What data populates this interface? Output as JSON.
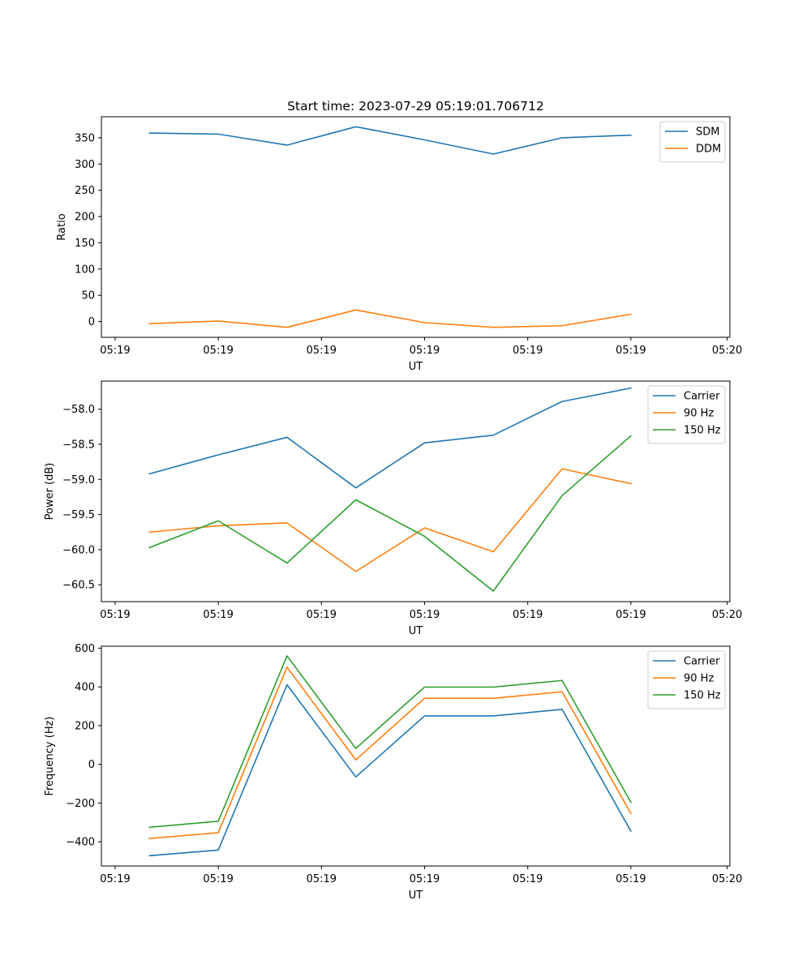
{
  "chart_data": [
    {
      "type": "line",
      "title": "Start time: 2023-07-29 05:19:01.706712",
      "xlabel": "UT",
      "ylabel": "Ratio",
      "x": [
        1,
        2,
        3,
        4,
        5,
        6,
        7,
        8
      ],
      "xlim": [
        0.3,
        9.44
      ],
      "x_ticks": [
        0.5,
        2,
        3.5,
        5,
        6.5,
        8,
        9.4
      ],
      "x_tick_labels": [
        "05:19",
        "05:19",
        "05:19",
        "05:19",
        "05:19",
        "05:19",
        "05:20"
      ],
      "ylim": [
        -30,
        390
      ],
      "y_ticks": [
        0,
        50,
        100,
        150,
        200,
        250,
        300,
        350
      ],
      "y_tick_labels": [
        "0",
        "50",
        "100",
        "150",
        "200",
        "250",
        "300",
        "350"
      ],
      "legend_position": "top-right",
      "series": [
        {
          "name": "SDM",
          "color": "#1f77b4",
          "values": [
            359,
            357,
            336,
            371,
            346,
            319,
            350,
            355
          ]
        },
        {
          "name": "DDM",
          "color": "#ff7f0e",
          "values": [
            -4,
            1,
            -11,
            22,
            -2,
            -11,
            -8,
            14
          ]
        }
      ]
    },
    {
      "type": "line",
      "xlabel": "UT",
      "ylabel": "Power (dB)",
      "x": [
        1,
        2,
        3,
        4,
        5,
        6,
        7,
        8
      ],
      "xlim": [
        0.3,
        9.44
      ],
      "x_ticks": [
        0.5,
        2,
        3.5,
        5,
        6.5,
        8,
        9.4
      ],
      "x_tick_labels": [
        "05:19",
        "05:19",
        "05:19",
        "05:19",
        "05:19",
        "05:19",
        "05:20"
      ],
      "ylim": [
        -60.74,
        -57.6
      ],
      "y_ticks": [
        -60.5,
        -60.0,
        -59.5,
        -59.0,
        -58.5,
        -58.0
      ],
      "y_tick_labels": [
        "−60.5",
        "−60.0",
        "−59.5",
        "−59.0",
        "−58.5",
        "−58.0"
      ],
      "legend_position": "top-right",
      "series": [
        {
          "name": "Carrier",
          "color": "#1f77b4",
          "values": [
            -58.92,
            -58.65,
            -58.4,
            -59.12,
            -58.48,
            -58.37,
            -57.89,
            -57.7
          ]
        },
        {
          "name": "90 Hz",
          "color": "#ff7f0e",
          "values": [
            -59.75,
            -59.66,
            -59.62,
            -60.31,
            -59.69,
            -60.03,
            -58.85,
            -59.06
          ]
        },
        {
          "name": "150 Hz",
          "color": "#2ca02c",
          "values": [
            -59.97,
            -59.59,
            -60.19,
            -59.29,
            -59.81,
            -60.59,
            -59.23,
            -58.38
          ]
        }
      ]
    },
    {
      "type": "line",
      "xlabel": "UT",
      "ylabel": "Frequency (Hz)",
      "x": [
        1,
        2,
        3,
        4,
        5,
        6,
        7,
        8
      ],
      "xlim": [
        0.3,
        9.44
      ],
      "x_ticks": [
        0.5,
        2,
        3.5,
        5,
        6.5,
        8,
        9.4
      ],
      "x_tick_labels": [
        "05:19",
        "05:19",
        "05:19",
        "05:19",
        "05:19",
        "05:19",
        "05:20"
      ],
      "ylim": [
        -525,
        610
      ],
      "y_ticks": [
        -400,
        -200,
        0,
        200,
        400,
        600
      ],
      "y_tick_labels": [
        "−400",
        "−200",
        "0",
        "200",
        "400",
        "600"
      ],
      "legend_position": "top-right",
      "series": [
        {
          "name": "Carrier",
          "color": "#1f77b4",
          "values": [
            -472,
            -443,
            411,
            -65,
            250,
            250,
            284,
            -345
          ]
        },
        {
          "name": "90 Hz",
          "color": "#ff7f0e",
          "values": [
            -383,
            -353,
            502,
            23,
            341,
            341,
            375,
            -254
          ]
        },
        {
          "name": "150 Hz",
          "color": "#2ca02c",
          "values": [
            -325,
            -294,
            560,
            82,
            399,
            399,
            433,
            -196
          ]
        }
      ]
    }
  ]
}
